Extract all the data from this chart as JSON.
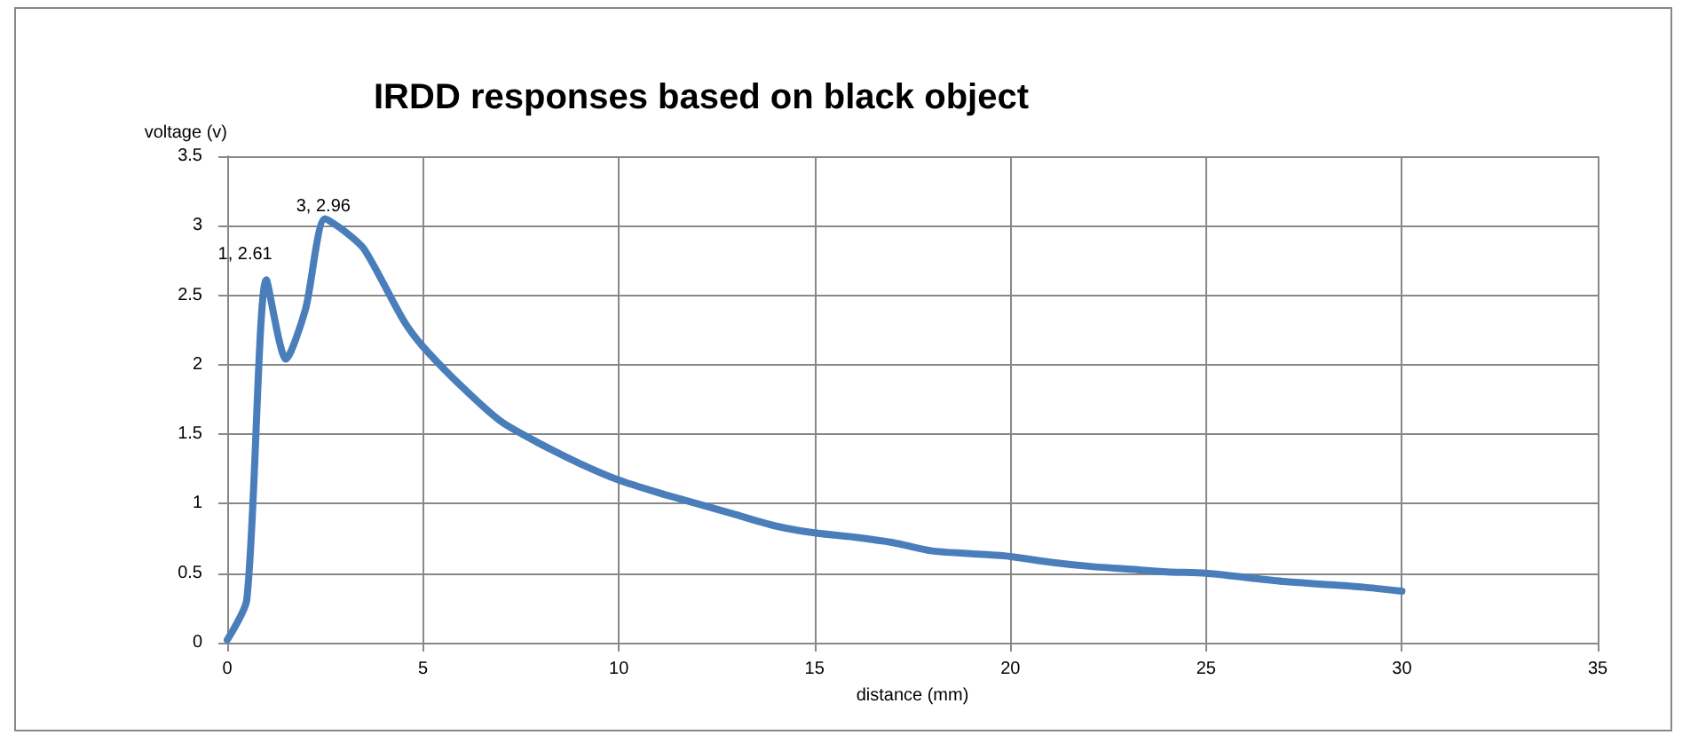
{
  "chart_data": {
    "type": "line",
    "title": "IRDD responses based on black object",
    "xlabel": "distance (mm)",
    "ylabel": "voltage (v)",
    "x": [
      0,
      0.5,
      1,
      1.5,
      2,
      2.5,
      3,
      3.5,
      4.5,
      5,
      6,
      7,
      8,
      9,
      10,
      11,
      12,
      13,
      14,
      15,
      16,
      17,
      18,
      19,
      20,
      21,
      22,
      23,
      24,
      25,
      26,
      27,
      28,
      29,
      30
    ],
    "series": [
      {
        "color": "#4a7ebb",
        "values": [
          0.02,
          0.31,
          2.61,
          2.04,
          2.4,
          3.05,
          2.96,
          2.83,
          2.32,
          2.13,
          1.84,
          1.59,
          1.43,
          1.29,
          1.17,
          1.08,
          1.0,
          0.92,
          0.84,
          0.79,
          0.76,
          0.72,
          0.66,
          0.64,
          0.62,
          0.58,
          0.55,
          0.53,
          0.51,
          0.5,
          0.47,
          0.44,
          0.42,
          0.4,
          0.37
        ],
        "value_labels": [
          null,
          null,
          "1, 2.61",
          null,
          null,
          null,
          "3, 2.96",
          null,
          null,
          null,
          null,
          null,
          null,
          null,
          null,
          null,
          null,
          null,
          null,
          null,
          null,
          null,
          null,
          null,
          null,
          null,
          null,
          null,
          null,
          null,
          null,
          null,
          null,
          null,
          null
        ]
      }
    ],
    "xlim": [
      0,
      35
    ],
    "xticks": [
      0,
      5,
      10,
      15,
      20,
      25,
      30,
      35
    ],
    "ylim": [
      0,
      3.5
    ],
    "yticks": [
      0,
      0.5,
      1,
      1.5,
      2,
      2.5,
      3,
      3.5
    ],
    "grid": true,
    "marker": "none",
    "line_style": "solid"
  }
}
